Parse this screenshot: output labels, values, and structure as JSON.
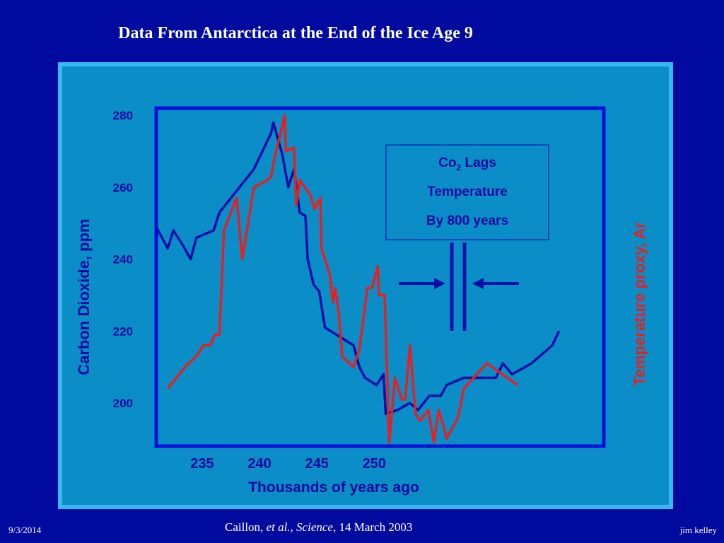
{
  "slide": {
    "title": "Data From Antarctica at the End of the Ice Age 9",
    "date": "9/3/2014",
    "author": "jim kelley",
    "citation": {
      "authors": "Caillon, ",
      "etal": "et al., Science",
      "date": ", 14 March 2003"
    },
    "callout": {
      "line1_main": "Co",
      "line1_sub": "2",
      "line1_rest": " Lags",
      "line2": "Temperature",
      "line3": "By 800 years"
    }
  },
  "colors": {
    "background": "#000a9e",
    "panel": "#0b8dc8",
    "co2": "#000fa6",
    "temperature": "#e62020",
    "label": "#000a9e"
  },
  "chart_data": {
    "type": "line",
    "title": "",
    "xlabel": "Thousands of years ago",
    "ylabel": "Carbon Dioxide, ppm",
    "y2label": "Temperature proxy, Ar",
    "xlim": [
      231,
      270
    ],
    "ylim": [
      188,
      282
    ],
    "x_ticks": [
      235,
      240,
      245,
      250
    ],
    "y_ticks": [
      200,
      220,
      240,
      260,
      280
    ],
    "series": [
      {
        "key": "co2",
        "points": [
          [
            231,
            249
          ],
          [
            232,
            243
          ],
          [
            232.5,
            248
          ],
          [
            233.3,
            244
          ],
          [
            234,
            240
          ],
          [
            234.5,
            246
          ],
          [
            236,
            248
          ],
          [
            236.5,
            253
          ],
          [
            237,
            255
          ],
          [
            238,
            259
          ],
          [
            239.5,
            265
          ],
          [
            241,
            275
          ],
          [
            241.2,
            278
          ],
          [
            242,
            269
          ],
          [
            242.5,
            260
          ],
          [
            243,
            265
          ],
          [
            243.5,
            253
          ],
          [
            244,
            252
          ],
          [
            244.2,
            240
          ],
          [
            244.7,
            233
          ],
          [
            245.2,
            231
          ],
          [
            245.7,
            221
          ],
          [
            246.2,
            220
          ],
          [
            248.2,
            216
          ],
          [
            248.7,
            210
          ],
          [
            249.2,
            207
          ],
          [
            250.2,
            205
          ],
          [
            250.8,
            208
          ],
          [
            251,
            197
          ],
          [
            252,
            198
          ],
          [
            253.1,
            200
          ],
          [
            253.8,
            198
          ],
          [
            254.8,
            202
          ],
          [
            255.8,
            202
          ],
          [
            256.3,
            205
          ],
          [
            257.8,
            207
          ],
          [
            260.6,
            207
          ],
          [
            261.2,
            211
          ],
          [
            262,
            208
          ],
          [
            263.7,
            211
          ],
          [
            265.5,
            216
          ],
          [
            266.1,
            220
          ]
        ]
      },
      {
        "key": "temp",
        "points": [
          [
            232,
            204
          ],
          [
            233.5,
            210
          ],
          [
            234.5,
            213
          ],
          [
            235.1,
            216
          ],
          [
            235.7,
            216
          ],
          [
            236.1,
            219
          ],
          [
            236.5,
            219
          ],
          [
            236.9,
            248
          ],
          [
            237.5,
            253
          ],
          [
            238,
            257
          ],
          [
            238.5,
            240
          ],
          [
            239.5,
            260
          ],
          [
            240.7,
            262
          ],
          [
            241,
            263
          ],
          [
            241.3,
            268
          ],
          [
            242.2,
            280
          ],
          [
            242.3,
            270
          ],
          [
            243,
            271
          ],
          [
            243.2,
            255
          ],
          [
            243.5,
            262
          ],
          [
            244.4,
            258
          ],
          [
            244.8,
            254
          ],
          [
            245.3,
            257
          ],
          [
            245.4,
            243
          ],
          [
            246.1,
            236
          ],
          [
            246.4,
            228
          ],
          [
            246.6,
            232
          ],
          [
            246.9,
            225
          ],
          [
            247.2,
            213
          ],
          [
            248.2,
            210
          ],
          [
            248.7,
            215
          ],
          [
            249.4,
            232
          ],
          [
            249.8,
            232
          ],
          [
            250.3,
            238
          ],
          [
            250.4,
            230
          ],
          [
            250.9,
            230
          ],
          [
            251.3,
            189
          ],
          [
            251.8,
            207
          ],
          [
            252.4,
            201
          ],
          [
            252.7,
            201
          ],
          [
            253.1,
            216
          ],
          [
            253.6,
            197
          ],
          [
            254,
            195
          ],
          [
            254.7,
            198
          ],
          [
            255.2,
            189
          ],
          [
            255.6,
            198
          ],
          [
            256.1,
            193
          ],
          [
            256.3,
            190
          ],
          [
            257.3,
            196
          ],
          [
            257.8,
            204
          ],
          [
            259.8,
            211
          ],
          [
            262.5,
            205
          ]
        ]
      }
    ]
  }
}
